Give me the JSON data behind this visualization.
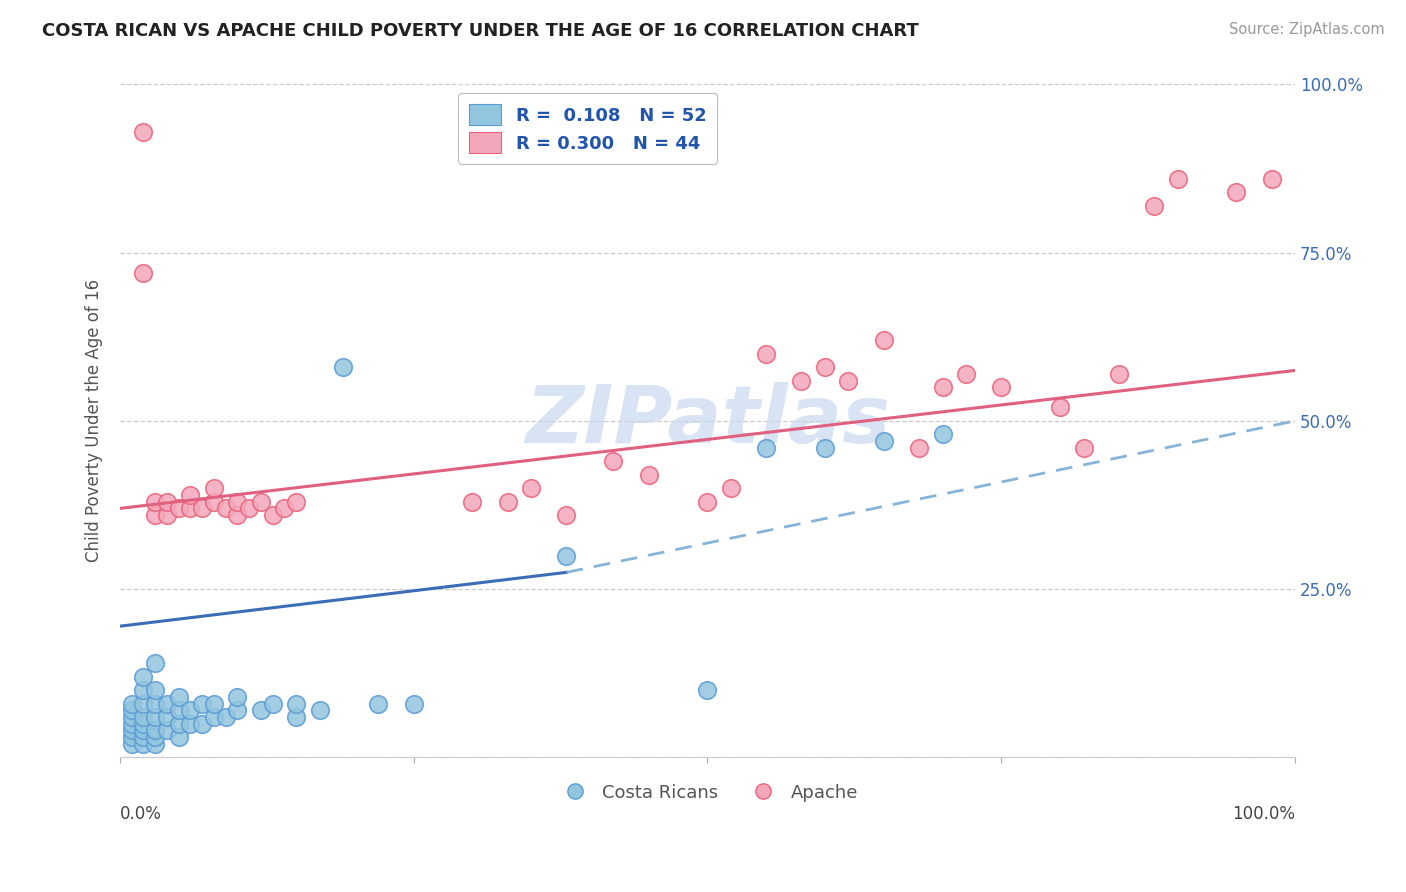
{
  "title": "COSTA RICAN VS APACHE CHILD POVERTY UNDER THE AGE OF 16 CORRELATION CHART",
  "source": "Source: ZipAtlas.com",
  "ylabel": "Child Poverty Under the Age of 16",
  "xlim": [
    0,
    1
  ],
  "ylim": [
    0,
    1
  ],
  "yticks": [
    0.0,
    0.25,
    0.5,
    0.75,
    1.0
  ],
  "ytick_labels": [
    "",
    "25.0%",
    "50.0%",
    "75.0%",
    "100.0%"
  ],
  "legend_r1": "R =  0.108",
  "legend_n1": "N = 52",
  "legend_r2": "R = 0.300",
  "legend_n2": "N = 44",
  "blue_color": "#92C5DE",
  "blue_edge_color": "#5B9BD5",
  "pink_color": "#F4A7BB",
  "pink_edge_color": "#E8637A",
  "blue_line_color": "#3A6DB5",
  "blue_dash_color": "#85B4D8",
  "pink_line_color": "#E06080",
  "watermark_color": "#C8D8EE",
  "blue_scatter_x": [
    0.01,
    0.01,
    0.01,
    0.01,
    0.01,
    0.01,
    0.01,
    0.02,
    0.02,
    0.02,
    0.02,
    0.02,
    0.02,
    0.02,
    0.02,
    0.03,
    0.03,
    0.03,
    0.03,
    0.03,
    0.03,
    0.03,
    0.04,
    0.04,
    0.04,
    0.05,
    0.05,
    0.05,
    0.05,
    0.06,
    0.06,
    0.07,
    0.07,
    0.08,
    0.08,
    0.09,
    0.1,
    0.1,
    0.12,
    0.13,
    0.15,
    0.15,
    0.17,
    0.19,
    0.22,
    0.25,
    0.38,
    0.5,
    0.55,
    0.6,
    0.65,
    0.7
  ],
  "blue_scatter_y": [
    0.02,
    0.03,
    0.04,
    0.05,
    0.06,
    0.07,
    0.08,
    0.02,
    0.03,
    0.04,
    0.05,
    0.06,
    0.08,
    0.1,
    0.12,
    0.02,
    0.03,
    0.04,
    0.06,
    0.08,
    0.1,
    0.14,
    0.04,
    0.06,
    0.08,
    0.03,
    0.05,
    0.07,
    0.09,
    0.05,
    0.07,
    0.05,
    0.08,
    0.06,
    0.08,
    0.06,
    0.07,
    0.09,
    0.07,
    0.08,
    0.06,
    0.08,
    0.07,
    0.58,
    0.08,
    0.08,
    0.3,
    0.1,
    0.46,
    0.46,
    0.47,
    0.48
  ],
  "pink_scatter_x": [
    0.02,
    0.02,
    0.03,
    0.03,
    0.04,
    0.04,
    0.05,
    0.06,
    0.06,
    0.07,
    0.08,
    0.08,
    0.09,
    0.1,
    0.1,
    0.11,
    0.12,
    0.13,
    0.14,
    0.15,
    0.3,
    0.33,
    0.35,
    0.38,
    0.42,
    0.45,
    0.5,
    0.52,
    0.55,
    0.58,
    0.6,
    0.62,
    0.65,
    0.68,
    0.7,
    0.72,
    0.75,
    0.8,
    0.82,
    0.85,
    0.88,
    0.9,
    0.95,
    0.98
  ],
  "pink_scatter_y": [
    0.93,
    0.72,
    0.36,
    0.38,
    0.36,
    0.38,
    0.37,
    0.37,
    0.39,
    0.37,
    0.38,
    0.4,
    0.37,
    0.36,
    0.38,
    0.37,
    0.38,
    0.36,
    0.37,
    0.38,
    0.38,
    0.38,
    0.4,
    0.36,
    0.44,
    0.42,
    0.38,
    0.4,
    0.6,
    0.56,
    0.58,
    0.56,
    0.62,
    0.46,
    0.55,
    0.57,
    0.55,
    0.52,
    0.46,
    0.57,
    0.82,
    0.86,
    0.84,
    0.86
  ],
  "blue_solid_line": [
    [
      0.0,
      0.195
    ],
    [
      0.38,
      0.275
    ]
  ],
  "blue_dash_line": [
    [
      0.38,
      0.275
    ],
    [
      1.0,
      0.5
    ]
  ],
  "pink_line": [
    [
      0.0,
      0.37
    ],
    [
      1.0,
      0.575
    ]
  ]
}
